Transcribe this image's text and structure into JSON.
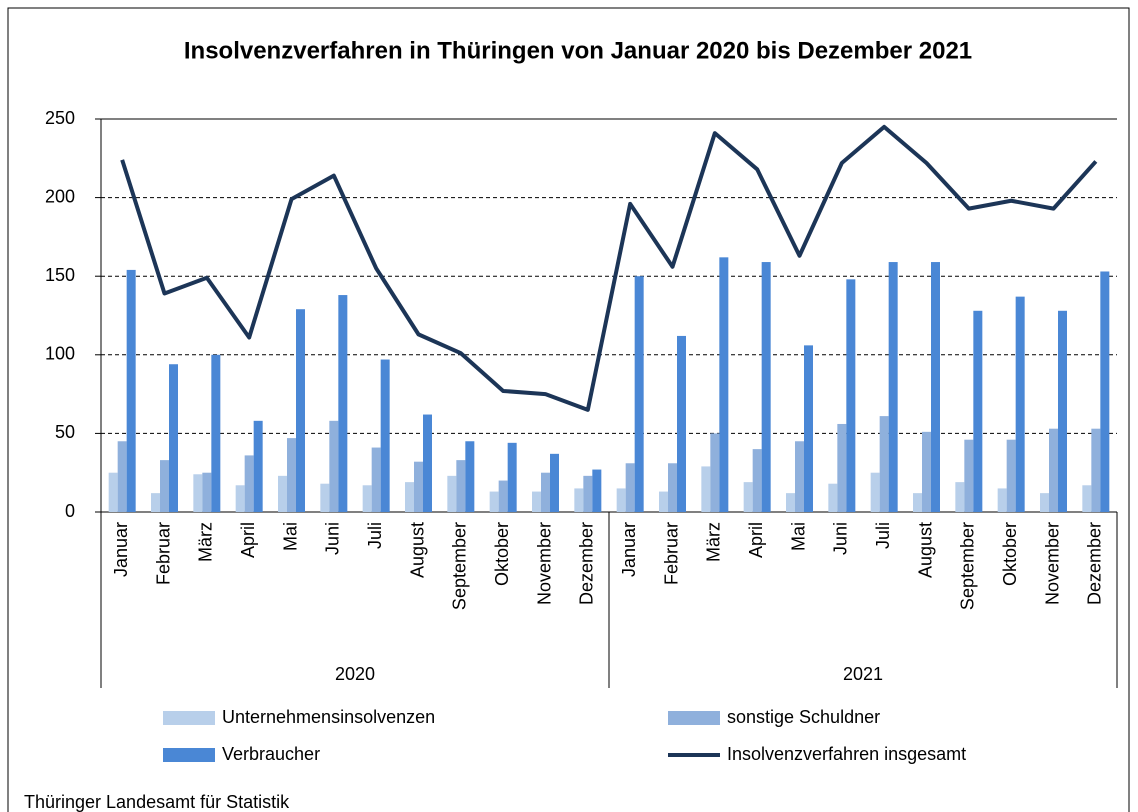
{
  "chart_data": {
    "type": "bar_line",
    "title": "Insolvenzverfahren in Thüringen von Januar 2020 bis Dezember 2021",
    "category_groups": [
      {
        "name": "2020",
        "categories": [
          "Januar",
          "Februar",
          "März",
          "April",
          "Mai",
          "Juni",
          "Juli",
          "August",
          "September",
          "Oktober",
          "November",
          "Dezember"
        ]
      },
      {
        "name": "2021",
        "categories": [
          "Januar",
          "Februar",
          "März",
          "April",
          "Mai",
          "Juni",
          "Juli",
          "August",
          "September",
          "Oktober",
          "November",
          "Dezember"
        ]
      }
    ],
    "series": [
      {
        "name": "Unternehmensinsolvenzen",
        "type": "bar",
        "color": "#b8cfea",
        "values": [
          25,
          12,
          24,
          17,
          23,
          18,
          17,
          19,
          23,
          13,
          13,
          15,
          15,
          13,
          29,
          19,
          12,
          18,
          25,
          12,
          19,
          15,
          12,
          17
        ]
      },
      {
        "name": "sonstige Schuldner",
        "type": "bar",
        "color": "#8fb0dc",
        "values": [
          45,
          33,
          25,
          36,
          47,
          58,
          41,
          32,
          33,
          20,
          25,
          23,
          31,
          31,
          50,
          40,
          45,
          56,
          61,
          51,
          46,
          46,
          53,
          53
        ]
      },
      {
        "name": "Verbraucher",
        "type": "bar",
        "color": "#4a87d5",
        "values": [
          154,
          94,
          100,
          58,
          129,
          138,
          97,
          62,
          45,
          44,
          37,
          27,
          150,
          112,
          162,
          159,
          106,
          148,
          159,
          159,
          128,
          137,
          128,
          153
        ]
      },
      {
        "name": "Insolvenzverfahren insgesamt",
        "type": "line",
        "color": "#1c3557",
        "values": [
          224,
          139,
          149,
          111,
          199,
          214,
          155,
          113,
          101,
          77,
          75,
          65,
          196,
          156,
          241,
          218,
          163,
          222,
          245,
          222,
          193,
          198,
          193,
          223
        ]
      }
    ],
    "ylim": [
      0,
      250
    ],
    "yticks": [
      0,
      50,
      100,
      150,
      200,
      250
    ],
    "grid": true,
    "source": "Thüringer Landesamt für Statistik"
  }
}
